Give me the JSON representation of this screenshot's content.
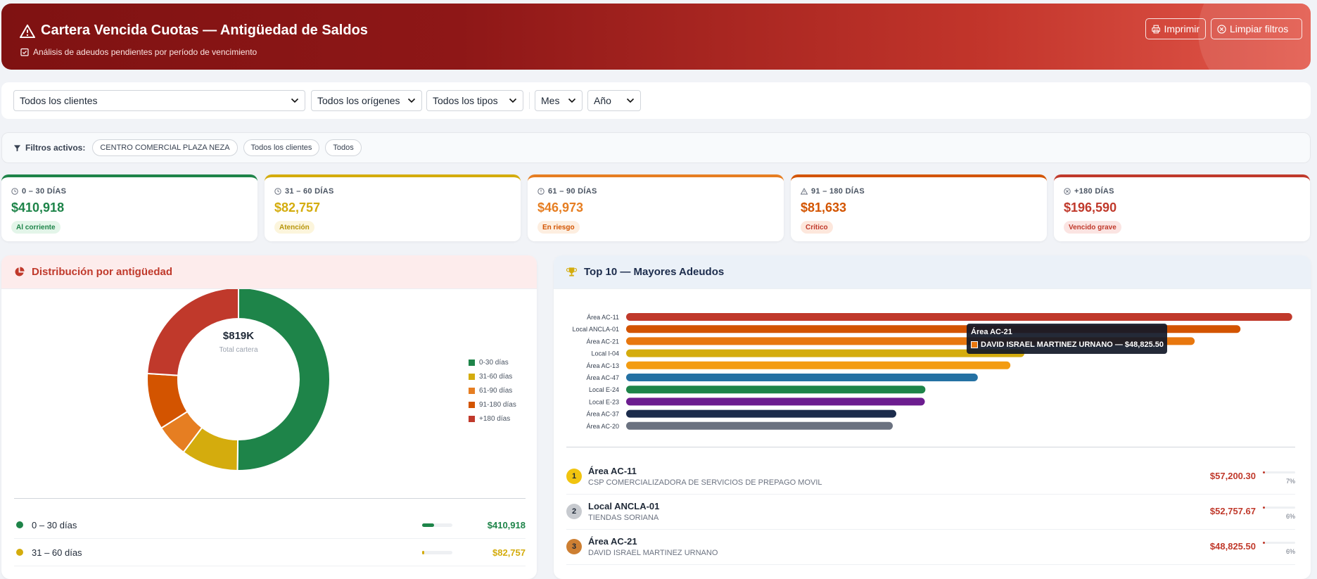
{
  "header": {
    "title": "Cartera Vencida Cuotas — Antigüedad de Saldos",
    "subtitle": "Análisis de adeudos pendientes por período de vencimiento",
    "print_label": "Imprimir",
    "clear_label": "Limpiar filtros"
  },
  "filters": {
    "clients": "Todos los clientes",
    "origins": "Todos los orígenes",
    "types": "Todos los tipos",
    "month": "Mes",
    "year": "Año"
  },
  "active_filters": {
    "label": "Filtros activos:",
    "chips": [
      "CENTRO COMERCIAL PLAZA NEZA",
      "Todos los clientes",
      "Todos"
    ]
  },
  "kpis": [
    {
      "label": "0 – 30 DÍAS",
      "value": "$410,918",
      "badge": "Al corriente",
      "color": "#1e8449",
      "badge_bg": "#e3f5e9"
    },
    {
      "label": "31 – 60 DÍAS",
      "value": "$82,757",
      "badge": "Atención",
      "color": "#d4ac0d",
      "badge_bg": "#fcf5dc"
    },
    {
      "label": "61 – 90 DÍAS",
      "value": "$46,973",
      "badge": "En riesgo",
      "color": "#e67e22",
      "badge_bg": "#fdeee0"
    },
    {
      "label": "91 – 180 DÍAS",
      "value": "$81,633",
      "badge": "Crítico",
      "color": "#d35400",
      "badge_bg": "#fde7dc"
    },
    {
      "label": "+180 DÍAS",
      "value": "$196,590",
      "badge": "Vencido grave",
      "color": "#c0392b",
      "badge_bg": "#fbe4e2"
    }
  ],
  "distribution": {
    "title": "Distribución por antigüedad",
    "center_value": "$819K",
    "center_label": "Total cartera",
    "legend": [
      "0-30 días",
      "31-60 días",
      "61-90 días",
      "91-180 días",
      "+180 días"
    ],
    "rows": [
      {
        "name": "0 – 30 días",
        "amount": "$410,918",
        "share": 0.5
      },
      {
        "name": "31 – 60 días",
        "amount": "$82,757",
        "share": 0.1
      }
    ]
  },
  "top10": {
    "title": "Top 10 — Mayores Adeudos",
    "tooltip": {
      "title": "Área AC-21",
      "text": "DAVID ISRAEL MARTINEZ URNANO — $48,825.50"
    },
    "list": [
      {
        "rank": "1",
        "name": "Área AC-11",
        "client": "CSP COMERCIALIZADORA DE SERVICIOS DE PREPAGO MOVIL",
        "amount": "$57,200.30",
        "pct": "7%"
      },
      {
        "rank": "2",
        "name": "Local ANCLA-01",
        "client": "TIENDAS SORIANA",
        "amount": "$52,757.67",
        "pct": "6%"
      },
      {
        "rank": "3",
        "name": "Área AC-21",
        "client": "DAVID ISRAEL MARTINEZ URNANO",
        "amount": "$48,825.50",
        "pct": "6%"
      }
    ]
  },
  "chart_data": [
    {
      "type": "pie",
      "labels": [
        "0-30 días",
        "31-60 días",
        "61-90 días",
        "91-180 días",
        "+180 días"
      ],
      "values": [
        410918,
        82757,
        46973,
        81633,
        196590
      ],
      "colors": [
        "#1e8449",
        "#d4ac0d",
        "#e67e22",
        "#d35400",
        "#c0392b"
      ],
      "title": "Distribución por antigüedad",
      "legend_position": "right"
    },
    {
      "type": "bar",
      "orientation": "horizontal",
      "categories": [
        "Área AC-11",
        "Local ANCLA-01",
        "Área AC-21",
        "Local I-04",
        "Área AC-13",
        "Área AC-47",
        "Local E-24",
        "Local E-23",
        "Área AC-37",
        "Área AC-20"
      ],
      "values": [
        57200.3,
        52757.67,
        48825.5,
        34200,
        33000,
        30200,
        25700,
        25650,
        23200,
        22900
      ],
      "colors": [
        "#c0392b",
        "#d35400",
        "#e8770e",
        "#d4ac0d",
        "#f39c12",
        "#2471a3",
        "#1e8449",
        "#6c1d8f",
        "#1c2c4c",
        "#6b7280"
      ],
      "title": "Top 10 — Mayores Adeudos",
      "xlim": [
        0,
        58000
      ]
    }
  ]
}
